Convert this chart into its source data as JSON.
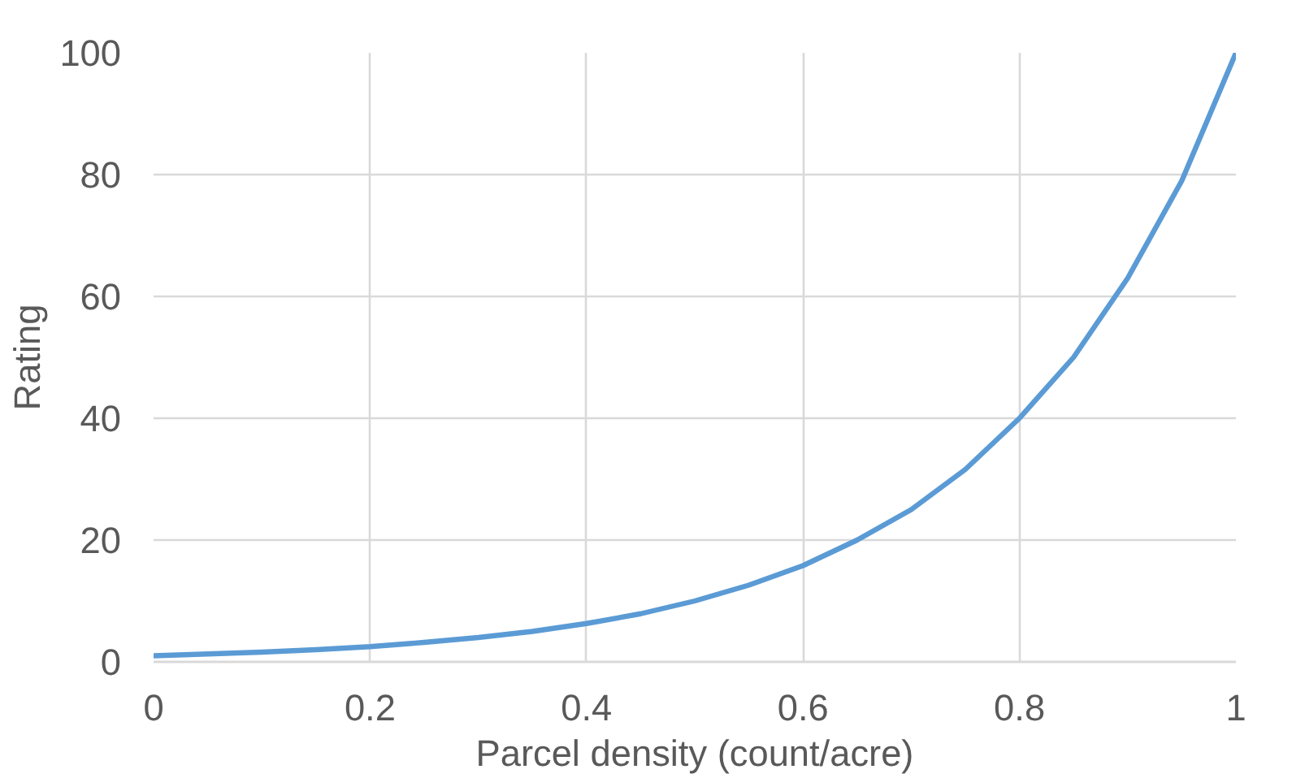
{
  "chart_data": {
    "type": "line",
    "xlabel": "Parcel density (count/acre)",
    "ylabel": "Rating",
    "x": [
      0,
      0.05,
      0.1,
      0.15,
      0.2,
      0.25,
      0.3,
      0.35,
      0.4,
      0.45,
      0.5,
      0.55,
      0.6,
      0.65,
      0.7,
      0.75,
      0.8,
      0.85,
      0.9,
      0.95,
      1
    ],
    "series": [
      {
        "color": "#5b9bd5",
        "values": [
          1,
          1.3,
          1.6,
          2,
          2.5,
          3.2,
          4,
          5,
          6.3,
          7.9,
          10,
          12.6,
          15.8,
          20,
          25,
          31.6,
          40,
          50,
          63,
          79,
          100
        ]
      }
    ],
    "xlim": [
      0,
      1
    ],
    "ylim": [
      0,
      100
    ],
    "xticks": [
      0,
      0.2,
      0.4,
      0.6,
      0.8,
      1
    ],
    "yticks": [
      0,
      20,
      40,
      60,
      80,
      100
    ],
    "grid": true,
    "marker": "none",
    "line_style": "solid"
  }
}
